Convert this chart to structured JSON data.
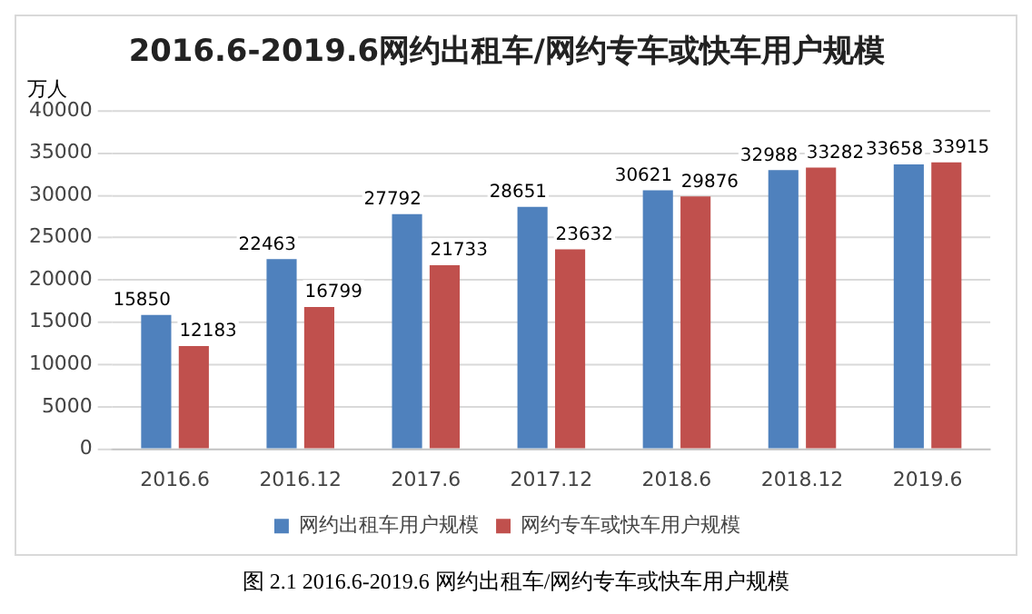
{
  "chart_data": {
    "type": "bar",
    "title": "2016.6-2019.6网约出租车/网约专车或快车用户规模",
    "ylabel": "万人",
    "categories": [
      "2016.6",
      "2016.12",
      "2017.6",
      "2017.12",
      "2018.6",
      "2018.12",
      "2019.6"
    ],
    "series": [
      {
        "name": "网约出租车用户规模",
        "color": "#4f81bd",
        "values": [
          15850,
          22463,
          27792,
          28651,
          30621,
          32988,
          33658
        ]
      },
      {
        "name": "网约专车或快车用户规模",
        "color": "#c0504d",
        "values": [
          12183,
          16799,
          21733,
          23632,
          29876,
          33282,
          33915
        ]
      }
    ],
    "ylim": [
      0,
      40000
    ],
    "yticks": [
      0,
      5000,
      10000,
      15000,
      20000,
      25000,
      30000,
      35000,
      40000
    ],
    "grid": "y",
    "legend": "bottom",
    "data_labels": true,
    "annotations": [
      "图 2.1 2016.6-2019.6 网约出租车/网约专车或快车用户规模"
    ]
  }
}
